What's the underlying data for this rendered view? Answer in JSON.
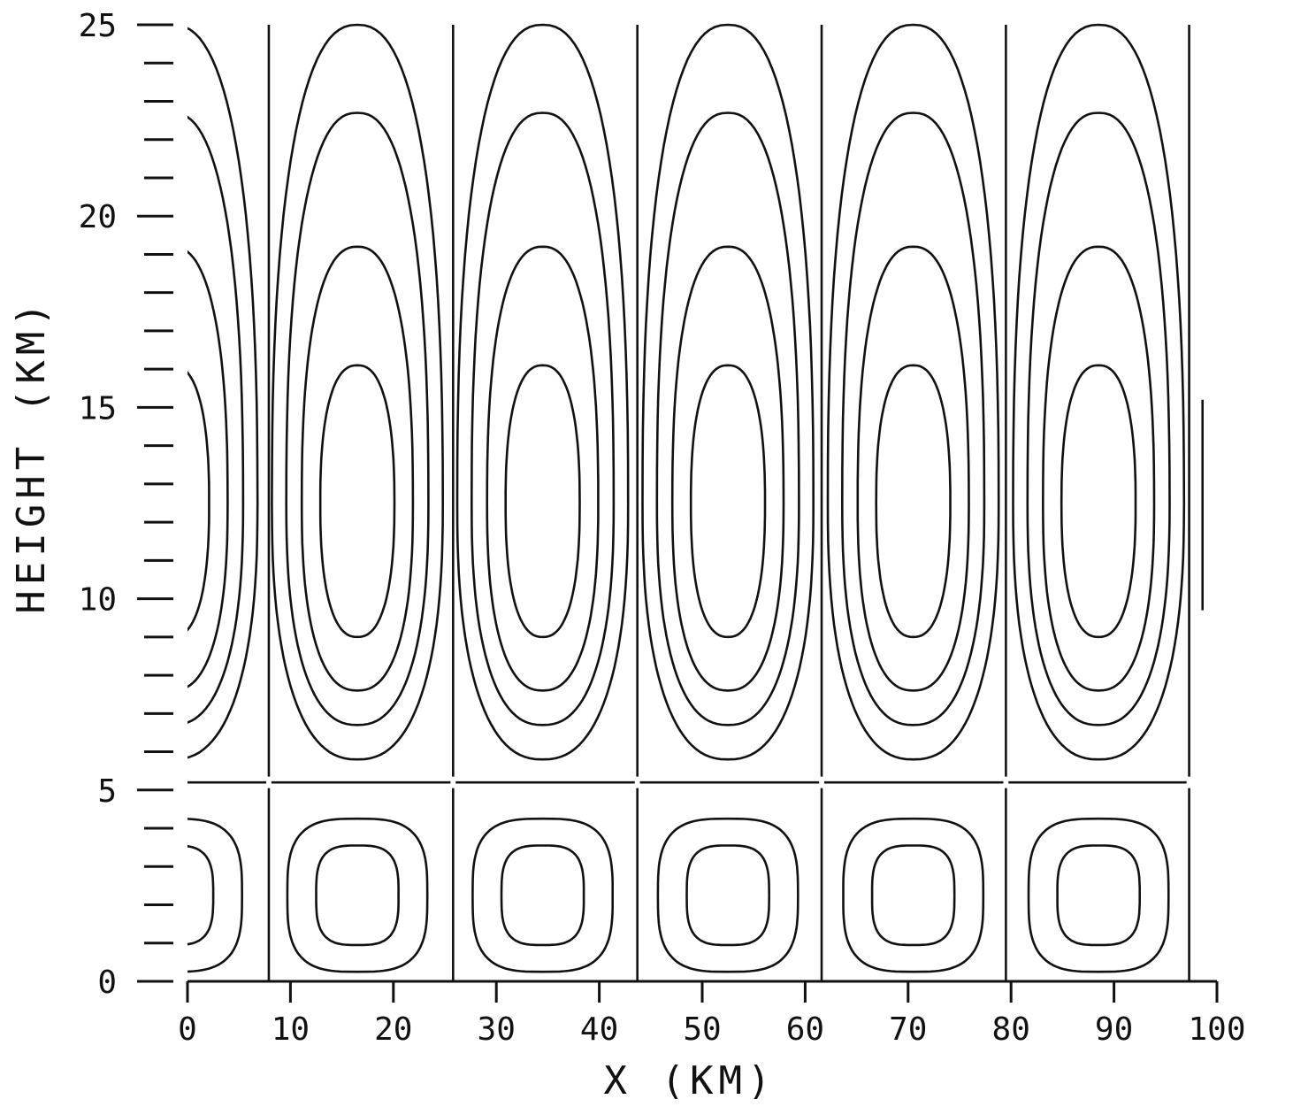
{
  "chart_data": {
    "type": "contour",
    "title": "",
    "xlabel": "X  (KM)",
    "ylabel": "HEIGHT  (KM)",
    "xlim": [
      0,
      100
    ],
    "ylim": [
      0,
      25
    ],
    "x_ticks": [
      0,
      10,
      20,
      30,
      40,
      50,
      60,
      70,
      80,
      90,
      100
    ],
    "y_ticks": [
      0,
      5,
      10,
      15,
      20,
      25
    ],
    "y_minor_step": 1,
    "grid": false,
    "cell_boundaries_x": [
      7.9,
      25.8,
      43.7,
      61.6,
      79.5,
      97.3
    ],
    "layer_boundary_y": 5.2,
    "upper_cells": [
      {
        "center_x": 16.5,
        "center_y": 12.5
      },
      {
        "center_x": 34.5,
        "center_y": 12.5
      },
      {
        "center_x": 52.5,
        "center_y": 12.5
      },
      {
        "center_x": 70.5,
        "center_y": 12.5
      },
      {
        "center_x": 88.5,
        "center_y": 12.5
      }
    ],
    "upper_contour_levels": [
      {
        "half_width_km": 3.6,
        "y_bottom": 9.0,
        "y_top": 16.1
      },
      {
        "half_width_km": 5.4,
        "y_bottom": 7.6,
        "y_top": 19.2
      },
      {
        "half_width_km": 6.9,
        "y_bottom": 6.7,
        "y_top": 22.7
      },
      {
        "half_width_km": 8.3,
        "y_bottom": 5.8,
        "y_top": 25.0
      }
    ],
    "lower_cells": [
      {
        "center_x": 16.5,
        "center_y": 2.25
      },
      {
        "center_x": 34.5,
        "center_y": 2.25
      },
      {
        "center_x": 52.5,
        "center_y": 2.25
      },
      {
        "center_x": 70.5,
        "center_y": 2.25
      },
      {
        "center_x": 88.5,
        "center_y": 2.25
      },
      {
        "center_x": -1.5,
        "center_y": 2.25
      }
    ],
    "lower_contour_levels": [
      {
        "half_width_km": 4.0,
        "half_height_km": 1.3
      },
      {
        "half_width_km": 6.8,
        "half_height_km": 2.0
      }
    ]
  }
}
